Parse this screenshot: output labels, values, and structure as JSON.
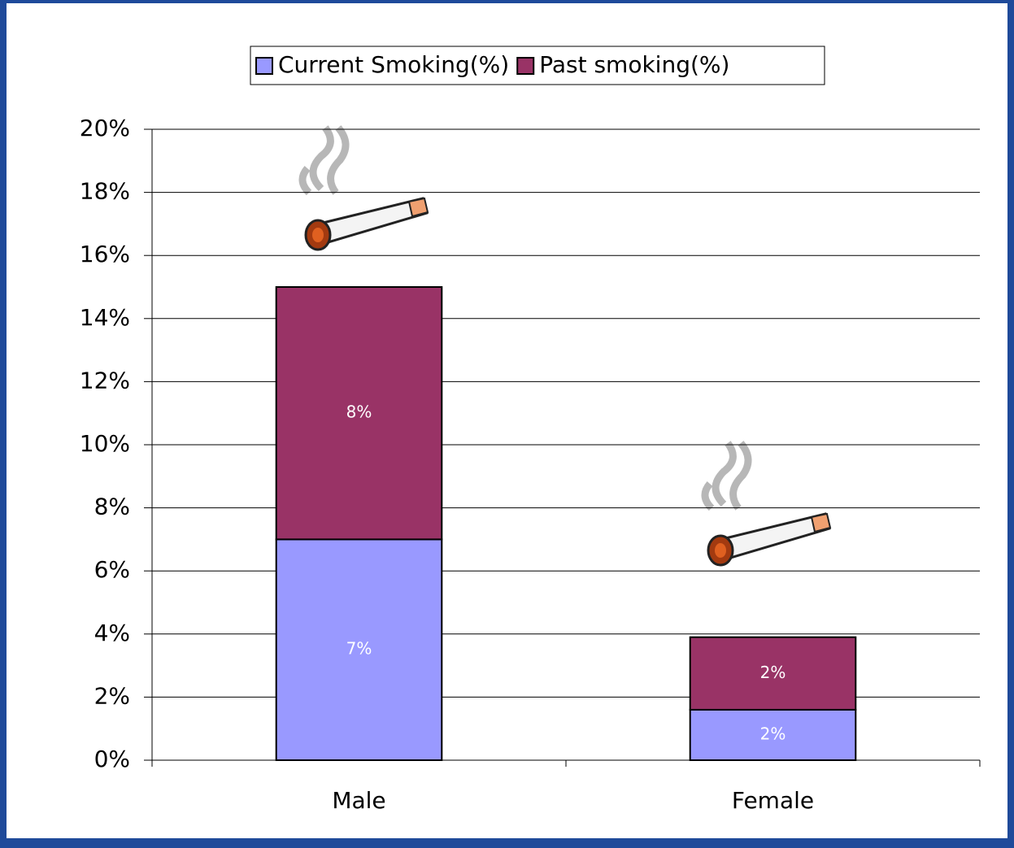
{
  "chart_data": {
    "type": "stacked-bar",
    "categories": [
      "Male",
      "Female"
    ],
    "series": [
      {
        "name": "Current Smoking(%)",
        "color": "#9999ff",
        "values": [
          7,
          1.6
        ],
        "value_labels": [
          "7%",
          "2%"
        ]
      },
      {
        "name": "Past smoking(%)",
        "color": "#993366",
        "values": [
          8,
          2.3
        ],
        "value_labels": [
          "8%",
          "2%"
        ]
      }
    ],
    "ylim": [
      0,
      20
    ],
    "yticks": [
      {
        "value": 0,
        "label": "0%"
      },
      {
        "value": 2,
        "label": "2%"
      },
      {
        "value": 4,
        "label": "4%"
      },
      {
        "value": 6,
        "label": "6%"
      },
      {
        "value": 8,
        "label": "8%"
      },
      {
        "value": 10,
        "label": "10%"
      },
      {
        "value": 12,
        "label": "12%"
      },
      {
        "value": 14,
        "label": "14%"
      },
      {
        "value": 16,
        "label": "16%"
      },
      {
        "value": 18,
        "label": "18%"
      },
      {
        "value": 20,
        "label": "20%"
      }
    ],
    "grid": true,
    "legend": "top"
  }
}
